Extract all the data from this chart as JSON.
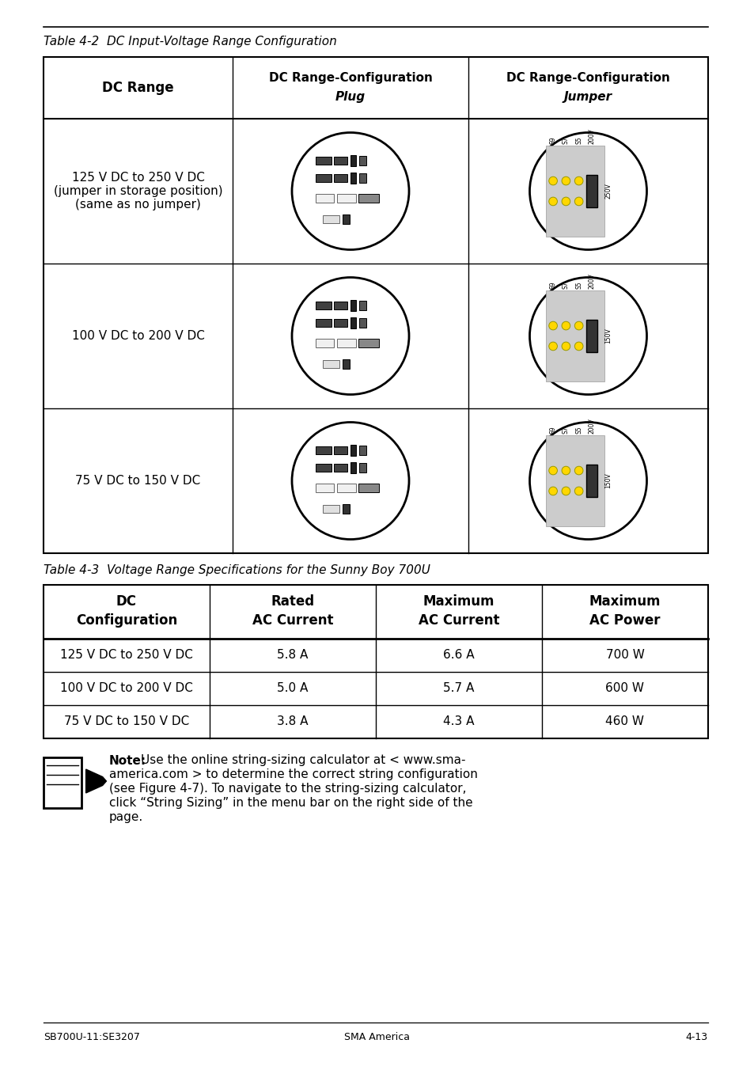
{
  "page_title1": "Table 4-2  DC Input-Voltage Range Configuration",
  "page_title2": "Table 4-3  Voltage Range Specifications for the Sunny Boy 700U",
  "table1_headers": [
    "DC Range",
    "DC Range-Configuration\nPlug",
    "DC Range-Configuration\nJumper"
  ],
  "table1_rows": [
    [
      "125 V DC to 250 V DC\n(jumper in storage position)\n(same as no jumper)",
      "",
      ""
    ],
    [
      "100 V DC to 200 V DC",
      "",
      ""
    ],
    [
      "75 V DC to 150 V DC",
      "",
      ""
    ]
  ],
  "table2_headers": [
    "DC\nConfiguration",
    "Rated\nAC Current",
    "Maximum\nAC Current",
    "Maximum\nAC Power"
  ],
  "table2_rows": [
    [
      "125 V DC to 250 V DC",
      "5.8 A",
      "6.6 A",
      "700 W"
    ],
    [
      "100 V DC to 200 V DC",
      "5.0 A",
      "5.7 A",
      "600 W"
    ],
    [
      "75 V DC to 150 V DC",
      "3.8 A",
      "4.3 A",
      "460 W"
    ]
  ],
  "note_bold": "Note:",
  "note_line1": "Use the online string-sizing calculator at < www.sma-",
  "note_line2": "america.com > to determine the correct string configuration",
  "note_line3": "(see Figure 4-7). To navigate to the string-sizing calculator,",
  "note_line4": "click “String Sizing” in the menu bar on the right side of the",
  "note_line5": "page.",
  "footer_left": "SB700U-11:SE3207",
  "footer_center": "SMA America",
  "footer_right": "4-13",
  "bg_color": "#ffffff",
  "text_color": "#000000"
}
